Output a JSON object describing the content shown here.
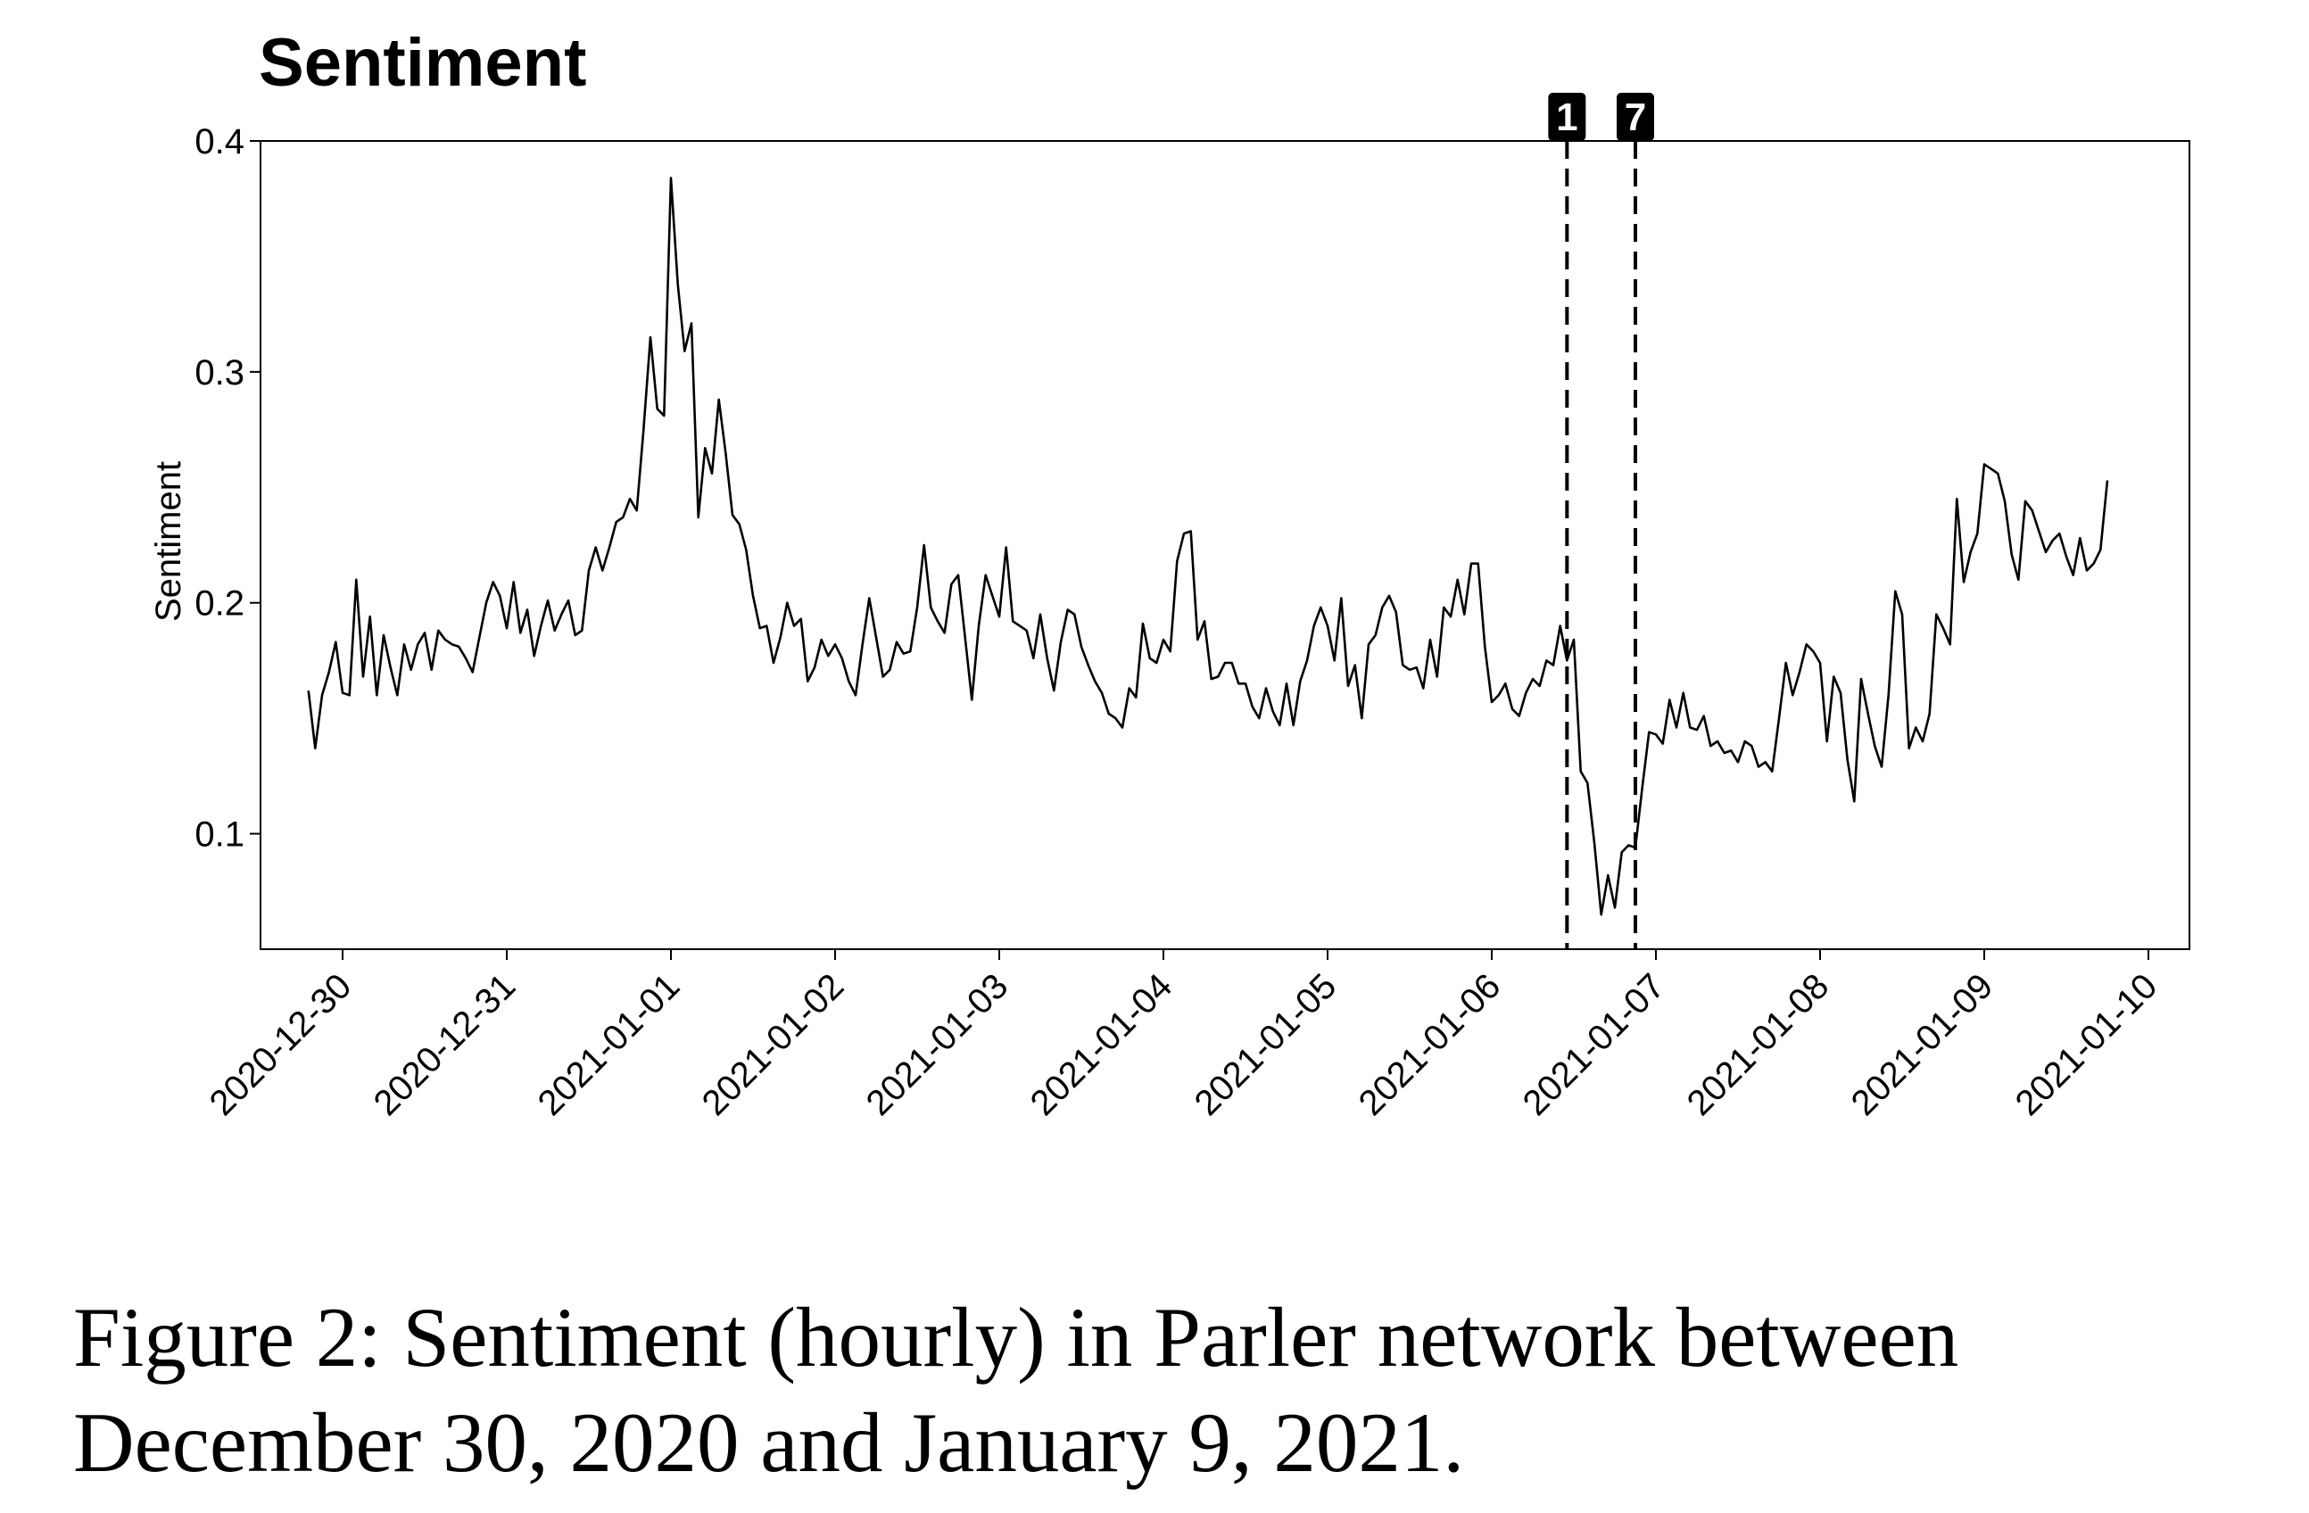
{
  "chart_data": {
    "type": "line",
    "title": "Sentiment",
    "xlabel": "",
    "ylabel": "Sentiment",
    "x_ticks": [
      "2020-12-30",
      "2020-12-31",
      "2021-01-01",
      "2021-01-02",
      "2021-01-03",
      "2021-01-04",
      "2021-01-05",
      "2021-01-06",
      "2021-01-07",
      "2021-01-08",
      "2021-01-09",
      "2021-01-10"
    ],
    "y_ticks": [
      "0.1",
      "0.2",
      "0.3",
      "0.4"
    ],
    "ylim": [
      0.05,
      0.4
    ],
    "xlim": [
      "2020-12-29 12:00",
      "2021-01-10 06:00"
    ],
    "grid": false,
    "events": [
      {
        "label": "1",
        "x": "2021-01-06 11:00"
      },
      {
        "label": "7",
        "x": "2021-01-06 21:00"
      }
    ],
    "series": [
      {
        "x_start": "2020-12-29 19:00",
        "interval": "hourly",
        "values": [
          0.162,
          0.137,
          0.16,
          0.17,
          0.183,
          0.161,
          0.16,
          0.21,
          0.168,
          0.194,
          0.16,
          0.186,
          0.172,
          0.16,
          0.182,
          0.171,
          0.182,
          0.187,
          0.171,
          0.188,
          0.184,
          0.182,
          0.181,
          0.176,
          0.17,
          0.185,
          0.2,
          0.209,
          0.203,
          0.189,
          0.209,
          0.187,
          0.197,
          0.177,
          0.19,
          0.201,
          0.188,
          0.195,
          0.201,
          0.186,
          0.188,
          0.214,
          0.224,
          0.214,
          0.224,
          0.235,
          0.237,
          0.245,
          0.24,
          0.275,
          0.315,
          0.284,
          0.281,
          0.384,
          0.338,
          0.309,
          0.321,
          0.237,
          0.267,
          0.256,
          0.288,
          0.265,
          0.238,
          0.234,
          0.223,
          0.203,
          0.189,
          0.19,
          0.174,
          0.185,
          0.2,
          0.19,
          0.193,
          0.166,
          0.172,
          0.184,
          0.177,
          0.182,
          0.176,
          0.166,
          0.16,
          0.182,
          0.202,
          0.185,
          0.168,
          0.171,
          0.183,
          0.178,
          0.179,
          0.198,
          0.225,
          0.198,
          0.192,
          0.187,
          0.208,
          0.212,
          0.185,
          0.158,
          0.19,
          0.212,
          0.203,
          0.194,
          0.224,
          0.192,
          0.19,
          0.188,
          0.176,
          0.195,
          0.176,
          0.162,
          0.183,
          0.197,
          0.195,
          0.181,
          0.173,
          0.166,
          0.161,
          0.152,
          0.15,
          0.146,
          0.163,
          0.159,
          0.191,
          0.176,
          0.174,
          0.184,
          0.179,
          0.218,
          0.23,
          0.231,
          0.184,
          0.192,
          0.167,
          0.168,
          0.174,
          0.174,
          0.165,
          0.165,
          0.155,
          0.15,
          0.163,
          0.153,
          0.147,
          0.165,
          0.147,
          0.166,
          0.175,
          0.19,
          0.198,
          0.19,
          0.175,
          0.202,
          0.164,
          0.173,
          0.15,
          0.182,
          0.186,
          0.198,
          0.203,
          0.196,
          0.173,
          0.171,
          0.172,
          0.163,
          0.184,
          0.168,
          0.198,
          0.194,
          0.21,
          0.195,
          0.217,
          0.217,
          0.181,
          0.157,
          0.16,
          0.165,
          0.154,
          0.151,
          0.161,
          0.167,
          0.164,
          0.175,
          0.173,
          0.19,
          0.175,
          0.184,
          0.127,
          0.122,
          0.096,
          0.065,
          0.082,
          0.068,
          0.092,
          0.095,
          0.094,
          0.12,
          0.144,
          0.143,
          0.139,
          0.158,
          0.146,
          0.161,
          0.146,
          0.145,
          0.151,
          0.138,
          0.14,
          0.135,
          0.136,
          0.131,
          0.14,
          0.138,
          0.129,
          0.131,
          0.127,
          0.15,
          0.174,
          0.16,
          0.17,
          0.182,
          0.179,
          0.174,
          0.14,
          0.168,
          0.161,
          0.132,
          0.114,
          0.167,
          0.152,
          0.138,
          0.129,
          0.16,
          0.205,
          0.195,
          0.137,
          0.146,
          0.14,
          0.152,
          0.195,
          0.189,
          0.182,
          0.245,
          0.209,
          0.222,
          0.23,
          0.26,
          0.258,
          0.256,
          0.244,
          0.221,
          0.21,
          0.244,
          0.24,
          0.231,
          0.222,
          0.227,
          0.23,
          0.22,
          0.212,
          0.228,
          0.214,
          0.217,
          0.223,
          0.253
        ]
      }
    ]
  },
  "caption": "Figure 2: Sentiment (hourly) in Parler network between December 30, 2020 and January 9, 2021.",
  "colors": {
    "line": "#000000",
    "badge_bg": "#000000",
    "badge_text": "#ffffff"
  }
}
